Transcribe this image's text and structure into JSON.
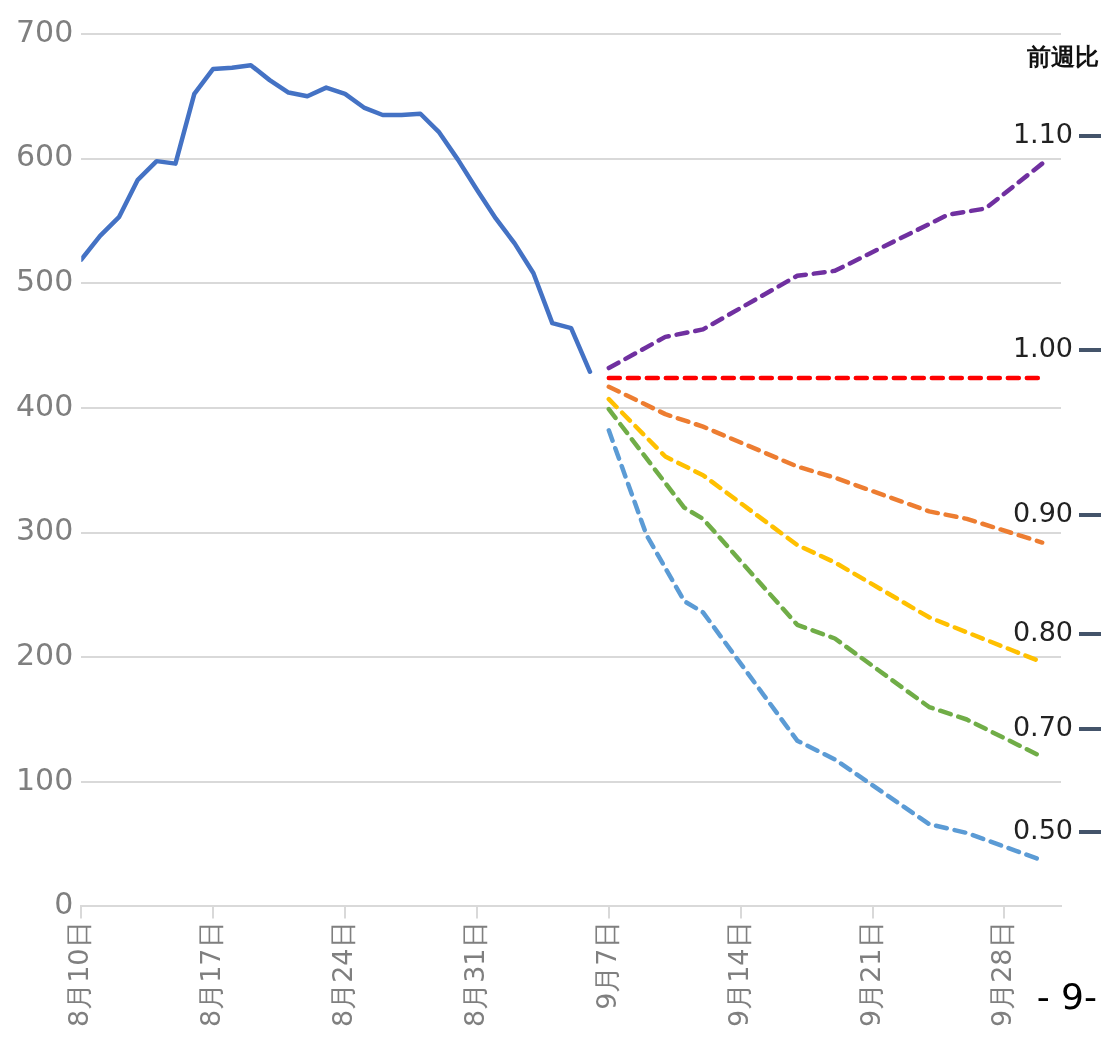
{
  "chart_data": {
    "type": "line",
    "legend_title": "前週比",
    "annotations": [
      "- 9-"
    ],
    "xlim": [
      "--08-10",
      "--10-01"
    ],
    "xticks": [
      {
        "value": "--08-10",
        "label": "8月10日"
      },
      {
        "value": "--08-17",
        "label": "8月17日"
      },
      {
        "value": "--08-24",
        "label": "8月24日"
      },
      {
        "value": "--08-31",
        "label": "8月31日"
      },
      {
        "value": "--09-07",
        "label": "9月7日"
      },
      {
        "value": "--09-14",
        "label": "9月14日"
      },
      {
        "value": "--09-21",
        "label": "9月21日"
      },
      {
        "value": "--09-28",
        "label": "9月28日"
      }
    ],
    "ylim": [
      0,
      700
    ],
    "yticks": [
      0,
      100,
      200,
      300,
      400,
      500,
      600,
      700
    ],
    "grid": "y",
    "legend": false,
    "marker": "none",
    "series": [
      {
        "color": "#4472c4",
        "line_style": "solid",
        "x": [
          "--08-10",
          "--08-11",
          "--08-12",
          "--08-13",
          "--08-14",
          "--08-15",
          "--08-16",
          "--08-17",
          "--08-18",
          "--08-19",
          "--08-20",
          "--08-21",
          "--08-22",
          "--08-23",
          "--08-24",
          "--08-25",
          "--08-26",
          "--08-27",
          "--08-28",
          "--08-29",
          "--08-30",
          "--08-31",
          "--09-01",
          "--09-02",
          "--09-03",
          "--09-04",
          "--09-05",
          "--09-06"
        ],
        "values": [
          519,
          538,
          553,
          583,
          598,
          596,
          652,
          672,
          673,
          675,
          663,
          653,
          650,
          657,
          652,
          641,
          635,
          635,
          636,
          621,
          599,
          575,
          552,
          532,
          508,
          468,
          464,
          429
        ]
      },
      {
        "name": "1.10",
        "color": "#7030a0",
        "line_style": "dashed",
        "x": [
          "--09-07",
          "--09-10",
          "--09-12",
          "--09-17",
          "--09-19",
          "--09-25",
          "--09-27",
          "--09-30"
        ],
        "values": [
          432,
          457,
          463,
          506,
          510,
          555,
          560,
          596
        ]
      },
      {
        "name": "1.00",
        "color": "#ff0000",
        "line_style": "dashed",
        "x": [
          "--09-07",
          "--09-30"
        ],
        "values": [
          424,
          424
        ]
      },
      {
        "name": "0.90",
        "color": "#ed7d31",
        "line_style": "dashed",
        "x": [
          "--09-07",
          "--09-10",
          "--09-12",
          "--09-17",
          "--09-19",
          "--09-24",
          "--09-26",
          "--09-30"
        ],
        "values": [
          417,
          395,
          385,
          353,
          344,
          317,
          311,
          292
        ]
      },
      {
        "name": "0.80",
        "color": "#ffc000",
        "line_style": "dashed",
        "x": [
          "--09-07",
          "--09-10",
          "--09-12",
          "--09-17",
          "--09-19",
          "--09-24",
          "--09-26",
          "--09-30"
        ],
        "values": [
          407,
          361,
          346,
          290,
          276,
          232,
          220,
          196
        ]
      },
      {
        "name": "0.70",
        "color": "#70ad47",
        "line_style": "dashed",
        "x": [
          "--09-07",
          "--09-11",
          "--09-12",
          "--09-17",
          "--09-19",
          "--09-24",
          "--09-26",
          "--09-30"
        ],
        "values": [
          399,
          320,
          311,
          226,
          215,
          160,
          150,
          120
        ]
      },
      {
        "name": "0.50",
        "color": "#5b9bd5",
        "line_style": "dashed",
        "x": [
          "--09-07",
          "--09-09",
          "--09-11",
          "--09-12",
          "--09-17",
          "--09-19",
          "--09-24",
          "--09-26",
          "--09-30"
        ],
        "values": [
          382,
          298,
          245,
          236,
          133,
          118,
          66,
          59,
          37
        ]
      }
    ]
  }
}
